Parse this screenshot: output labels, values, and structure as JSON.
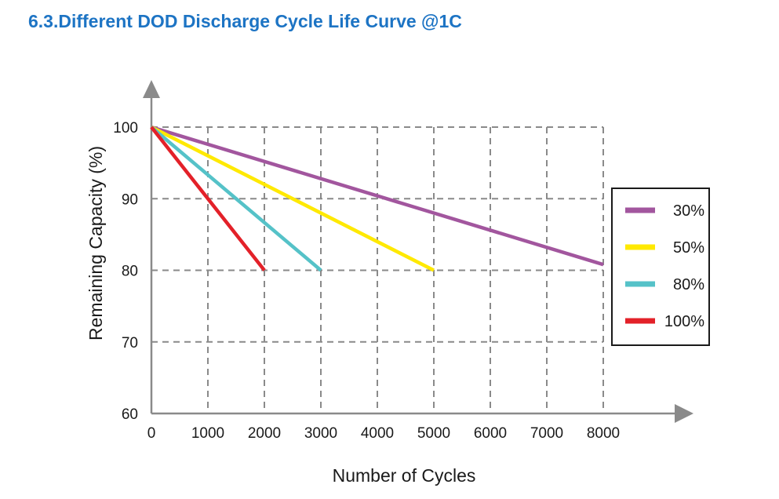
{
  "section": {
    "heading": "6.3.Different DOD Discharge Cycle Life Curve @1C"
  },
  "colors": {
    "heading": "#1d74c4",
    "s30": "#a2569e",
    "s50": "#ffe900",
    "s80": "#55c2c8",
    "s100": "#e32129",
    "grid": "#8a8a8a",
    "axis": "#8a8a8a"
  },
  "chart_data": {
    "type": "line",
    "title": "",
    "xlabel": "Number of Cycles",
    "ylabel": "Remaining Capacity (%)",
    "xlim": [
      0,
      8000
    ],
    "ylim": [
      60,
      100
    ],
    "x_ticks": [
      "0",
      "1000",
      "2000",
      "3000",
      "4000",
      "5000",
      "6000",
      "7000",
      "8000"
    ],
    "y_ticks": [
      "60",
      "70",
      "80",
      "90",
      "100"
    ],
    "grid": true,
    "legend_position": "right",
    "series": [
      {
        "name": "30%",
        "color": "#a2569e",
        "points": [
          [
            0,
            100
          ],
          [
            8000,
            80.8
          ]
        ]
      },
      {
        "name": "50%",
        "color": "#ffe900",
        "points": [
          [
            0,
            100
          ],
          [
            5000,
            80
          ]
        ]
      },
      {
        "name": "80%",
        "color": "#55c2c8",
        "points": [
          [
            0,
            100
          ],
          [
            3000,
            80
          ]
        ]
      },
      {
        "name": "100%",
        "color": "#e32129",
        "points": [
          [
            0,
            100
          ],
          [
            2000,
            80
          ]
        ]
      }
    ]
  }
}
